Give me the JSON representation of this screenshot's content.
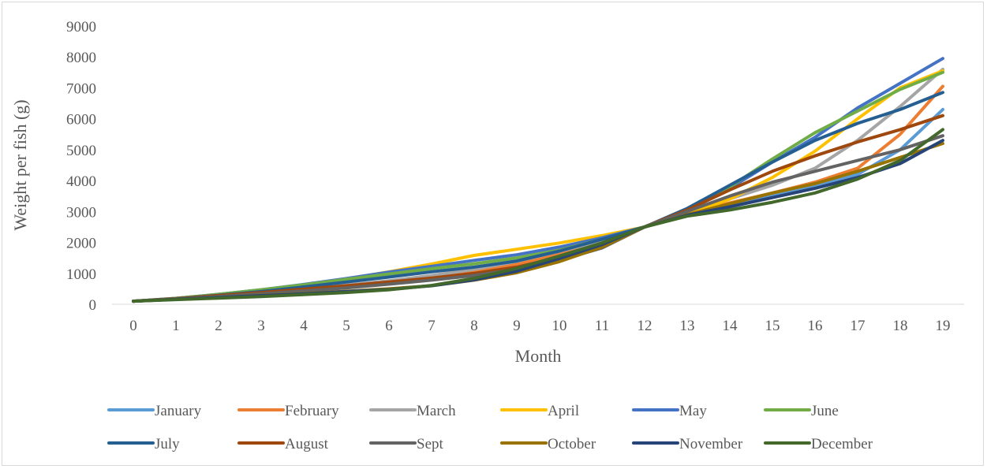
{
  "chart_data": {
    "type": "line",
    "title": "",
    "xlabel": "Month",
    "ylabel": "Weight per fish (g)",
    "ylim": [
      0,
      9000
    ],
    "x": [
      0,
      1,
      2,
      3,
      4,
      5,
      6,
      7,
      8,
      9,
      10,
      11,
      12,
      13,
      14,
      15,
      16,
      17,
      18,
      19
    ],
    "y_ticks": [
      0,
      1000,
      2000,
      3000,
      4000,
      5000,
      6000,
      7000,
      8000,
      9000
    ],
    "grid": false,
    "legend_position": "bottom",
    "series": [
      {
        "name": "January",
        "color": "#5b9bd5",
        "values": [
          100,
          170,
          250,
          330,
          430,
          550,
          690,
          850,
          1050,
          1300,
          1600,
          1950,
          2500,
          2900,
          3200,
          3500,
          3800,
          4200,
          5000,
          6300
        ]
      },
      {
        "name": "February",
        "color": "#ed7d31",
        "values": [
          100,
          170,
          250,
          340,
          450,
          570,
          700,
          880,
          1060,
          1300,
          1620,
          1950,
          2500,
          2920,
          3280,
          3600,
          3950,
          4400,
          5500,
          7050
        ]
      },
      {
        "name": "March",
        "color": "#a5a5a5",
        "values": [
          100,
          180,
          270,
          370,
          490,
          620,
          760,
          930,
          1130,
          1390,
          1710,
          2050,
          2500,
          2980,
          3410,
          3850,
          4400,
          5300,
          6400,
          7600
        ]
      },
      {
        "name": "April",
        "color": "#ffc000",
        "values": [
          100,
          190,
          310,
          450,
          620,
          820,
          1050,
          1300,
          1580,
          1780,
          1980,
          2220,
          2500,
          2900,
          3400,
          4100,
          4950,
          6000,
          7000,
          7550
        ]
      },
      {
        "name": "May",
        "color": "#4472c4",
        "values": [
          100,
          190,
          320,
          470,
          640,
          830,
          1040,
          1230,
          1420,
          1600,
          1850,
          2150,
          2500,
          3050,
          3750,
          4600,
          5400,
          6350,
          7150,
          7950
        ]
      },
      {
        "name": "June",
        "color": "#70ad47",
        "values": [
          100,
          190,
          320,
          470,
          630,
          810,
          980,
          1150,
          1310,
          1500,
          1750,
          2100,
          2500,
          3050,
          3800,
          4700,
          5550,
          6250,
          6950,
          7500
        ]
      },
      {
        "name": "July",
        "color": "#255e91",
        "values": [
          100,
          180,
          290,
          410,
          560,
          720,
          880,
          1050,
          1200,
          1400,
          1720,
          2100,
          2500,
          3100,
          3850,
          4600,
          5300,
          5850,
          6300,
          6850
        ]
      },
      {
        "name": "August",
        "color": "#9e480e",
        "values": [
          100,
          180,
          280,
          380,
          490,
          600,
          720,
          850,
          1000,
          1200,
          1520,
          1900,
          2500,
          3050,
          3700,
          4300,
          4800,
          5250,
          5650,
          6100
        ]
      },
      {
        "name": "Sept",
        "color": "#636363",
        "values": [
          100,
          170,
          250,
          340,
          430,
          530,
          650,
          780,
          930,
          1130,
          1420,
          1820,
          2500,
          3000,
          3500,
          3950,
          4300,
          4650,
          5000,
          5450
        ]
      },
      {
        "name": "October",
        "color": "#997300",
        "values": [
          100,
          160,
          220,
          290,
          350,
          420,
          500,
          600,
          780,
          1020,
          1380,
          1850,
          2500,
          2900,
          3250,
          3600,
          3900,
          4300,
          4750,
          5200
        ]
      },
      {
        "name": "November",
        "color": "#264478",
        "values": [
          100,
          160,
          220,
          280,
          340,
          410,
          480,
          600,
          790,
          1070,
          1480,
          1930,
          2500,
          2880,
          3150,
          3450,
          3750,
          4100,
          4550,
          5300
        ]
      },
      {
        "name": "December",
        "color": "#43682b",
        "values": [
          100,
          150,
          200,
          250,
          310,
          380,
          470,
          610,
          840,
          1160,
          1560,
          1980,
          2500,
          2850,
          3050,
          3300,
          3600,
          4050,
          4650,
          5650
        ]
      }
    ]
  }
}
